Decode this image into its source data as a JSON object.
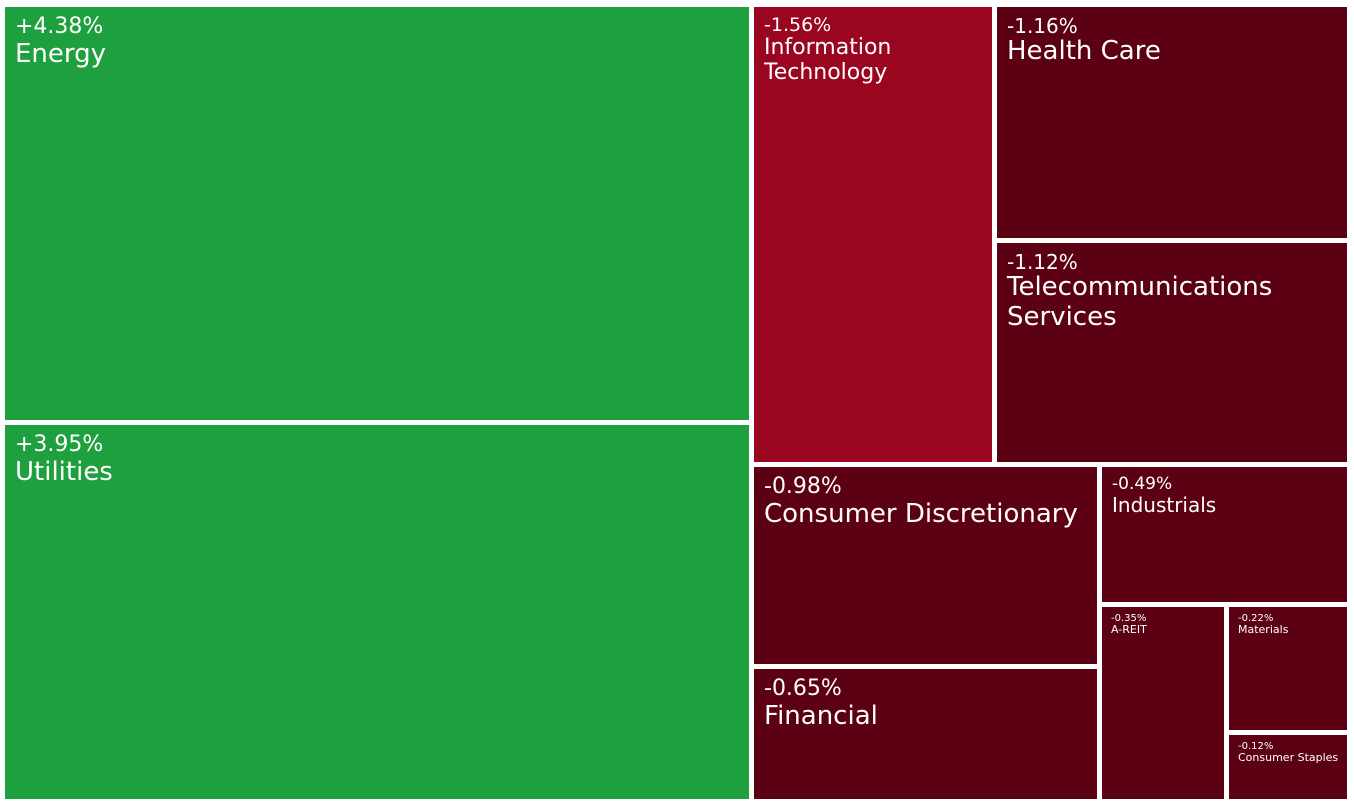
{
  "chart_data": {
    "type": "treemap",
    "colors": {
      "positive": "#1fa03f",
      "negative_strong": "#9a051f",
      "negative": "#5c0014"
    },
    "items": [
      {
        "name": "Energy",
        "change": "+4.38%",
        "value": 4.38,
        "color": "positive"
      },
      {
        "name": "Utilities",
        "change": "+3.95%",
        "value": 3.95,
        "color": "positive"
      },
      {
        "name": "Information Technology",
        "change": "-1.56%",
        "value": -1.56,
        "color": "negative_strong"
      },
      {
        "name": "Health Care",
        "change": "-1.16%",
        "value": -1.16,
        "color": "negative"
      },
      {
        "name": "Telecommunications Services",
        "change": "-1.12%",
        "value": -1.12,
        "color": "negative"
      },
      {
        "name": "Consumer Discretionary",
        "change": "-0.98%",
        "value": -0.98,
        "color": "negative"
      },
      {
        "name": "Industrials",
        "change": "-0.49%",
        "value": -0.49,
        "color": "negative"
      },
      {
        "name": "Financial",
        "change": "-0.65%",
        "value": -0.65,
        "color": "negative"
      },
      {
        "name": "A-REIT",
        "change": "-0.35%",
        "value": -0.35,
        "color": "negative"
      },
      {
        "name": "Materials",
        "change": "-0.22%",
        "value": -0.22,
        "color": "negative"
      },
      {
        "name": "Consumer Staples",
        "change": "-0.12%",
        "value": -0.12,
        "color": "negative"
      }
    ]
  }
}
